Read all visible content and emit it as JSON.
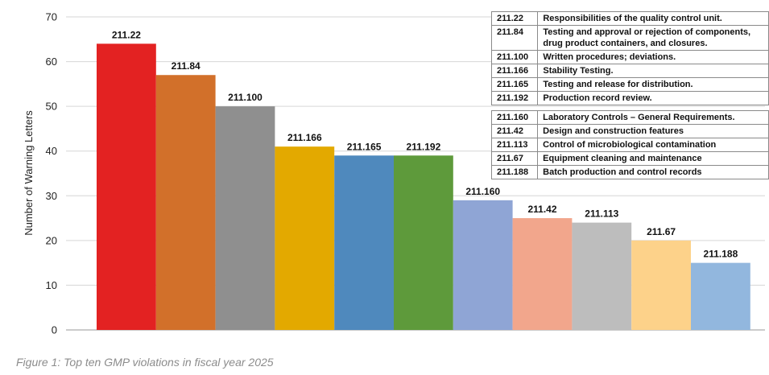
{
  "caption": "Figure 1: Top ten GMP violations in fiscal year 2025",
  "chart_data": {
    "type": "bar",
    "title": "",
    "xlabel": "",
    "ylabel": "Number of Warning Letters",
    "ylim": [
      0,
      70
    ],
    "yticks": [
      0,
      10,
      20,
      30,
      40,
      50,
      60,
      70
    ],
    "grid": true,
    "categories": [
      "211.22",
      "211.84",
      "211.100",
      "211.166",
      "211.165",
      "211.192",
      "211.160",
      "211.42",
      "211.113",
      "211.67",
      "211.188"
    ],
    "values": [
      64,
      57,
      50,
      41,
      39,
      39,
      29,
      25,
      24,
      20,
      15
    ],
    "colors": [
      "#e32222",
      "#d2702a",
      "#8f8f8f",
      "#e3a900",
      "#4f89bd",
      "#5e9a3b",
      "#8fa5d5",
      "#f2a68c",
      "#bdbdbd",
      "#fdd28a",
      "#92b7de"
    ],
    "legend_groups": [
      [
        {
          "code": "211.22",
          "description": "Responsibilities of the quality control unit."
        },
        {
          "code": "211.84",
          "description": "Testing and approval or rejection of components, drug product containers, and closures."
        },
        {
          "code": "211.100",
          "description": "Written procedures; deviations."
        },
        {
          "code": "211.166",
          "description": "Stability Testing."
        },
        {
          "code": "211.165",
          "description": "Testing and release for distribution."
        },
        {
          "code": "211.192",
          "description": "Production record review."
        }
      ],
      [
        {
          "code": "211.160",
          "description": "Laboratory Controls – General Requirements."
        },
        {
          "code": "211.42",
          "description": "Design and construction features"
        },
        {
          "code": "211.113",
          "description": "Control of microbiological contamination"
        },
        {
          "code": "211.67",
          "description": "Equipment cleaning and maintenance"
        },
        {
          "code": "211.188",
          "description": "Batch production and control records"
        }
      ]
    ]
  }
}
